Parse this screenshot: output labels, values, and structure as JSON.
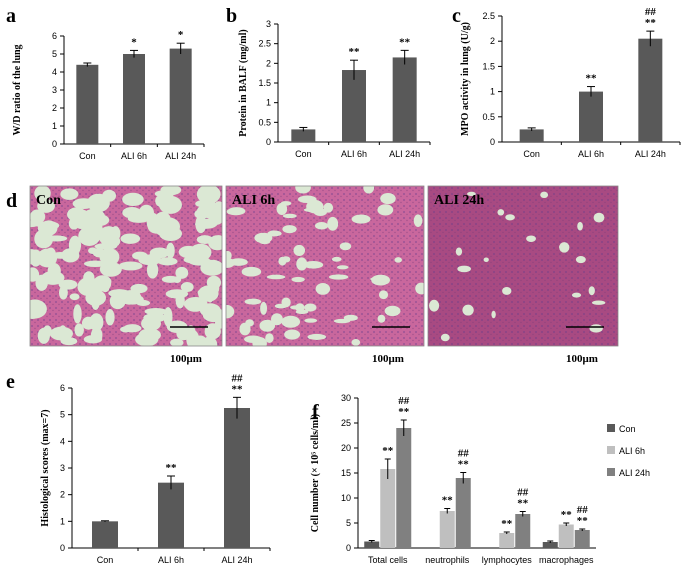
{
  "panels": {
    "a": {
      "letter": "a"
    },
    "b": {
      "letter": "b"
    },
    "c": {
      "letter": "c"
    },
    "d": {
      "letter": "d"
    },
    "e": {
      "letter": "e"
    },
    "f": {
      "letter": "f"
    }
  },
  "histology": {
    "images": [
      {
        "label": "Con",
        "scale": "100μm",
        "tissue": "normal"
      },
      {
        "label": "ALI 6h",
        "scale": "100μm",
        "tissue": "mild"
      },
      {
        "label": "ALI 24h",
        "scale": "100μm",
        "tissue": "severe"
      }
    ],
    "colors": {
      "background": "#dbe8d4",
      "tissue": "#c9679d",
      "tissue_dark": "#a84a82",
      "nuclei": "#5a3b8a"
    }
  },
  "chart_data": [
    {
      "id": "a",
      "type": "bar",
      "categories": [
        "Con",
        "ALI 6h",
        "ALI 24h"
      ],
      "values": [
        4.4,
        5.0,
        5.3
      ],
      "errors": [
        0.1,
        0.2,
        0.3
      ],
      "significance": [
        [
          "",
          ""
        ],
        [
          "*",
          ""
        ],
        [
          "*",
          ""
        ]
      ],
      "ylabel": "W/D ratio of the lung",
      "ylim": [
        0,
        6
      ],
      "yticks": [
        0,
        1,
        2,
        3,
        4,
        5,
        6
      ],
      "color": "#595959"
    },
    {
      "id": "b",
      "type": "bar",
      "categories": [
        "Con",
        "ALI 6h",
        "ALI 24h"
      ],
      "values": [
        0.32,
        1.83,
        2.15
      ],
      "errors": [
        0.05,
        0.25,
        0.18
      ],
      "significance": [
        [
          "",
          ""
        ],
        [
          "**",
          ""
        ],
        [
          "**",
          ""
        ]
      ],
      "ylabel": "Protein in BALF (mg/ml)",
      "ylim": [
        0,
        3
      ],
      "yticks": [
        0,
        0.5,
        1,
        1.5,
        2,
        2.5,
        3
      ],
      "yticklabels": [
        "0",
        "0.5",
        "1",
        "1.5",
        "2",
        "2.5",
        "3"
      ],
      "color": "#595959"
    },
    {
      "id": "c",
      "type": "bar",
      "categories": [
        "Con",
        "ALI 6h",
        "ALI 24h"
      ],
      "values": [
        0.25,
        1.0,
        2.05
      ],
      "errors": [
        0.03,
        0.1,
        0.15
      ],
      "significance": [
        [
          "",
          ""
        ],
        [
          "**",
          ""
        ],
        [
          "**",
          "##"
        ]
      ],
      "ylabel": "MPO activity in lung (U/g)",
      "ylim": [
        0,
        2.5
      ],
      "yticks": [
        0,
        0.5,
        1,
        1.5,
        2,
        2.5
      ],
      "yticklabels": [
        "0",
        "0.5",
        "1",
        "1.5",
        "2",
        "2.5"
      ],
      "color": "#595959"
    },
    {
      "id": "e",
      "type": "bar",
      "categories": [
        "Con",
        "ALI 6h",
        "ALI 24h"
      ],
      "values": [
        1.0,
        2.45,
        5.25
      ],
      "errors": [
        0.02,
        0.25,
        0.4
      ],
      "significance": [
        [
          "",
          ""
        ],
        [
          "**",
          ""
        ],
        [
          "**",
          "##"
        ]
      ],
      "ylabel": "Histological scores (max=7)",
      "ylim": [
        0,
        6
      ],
      "yticks": [
        0,
        1,
        2,
        3,
        4,
        5,
        6
      ],
      "color": "#595959"
    },
    {
      "id": "f",
      "type": "bar",
      "categories": [
        "Total cells",
        "neutrophils",
        "lymphocytes",
        "macrophages"
      ],
      "series": [
        {
          "name": "Con",
          "values": [
            1.3,
            0,
            0,
            1.2
          ],
          "errors": [
            0.2,
            0,
            0,
            0.2
          ],
          "color": "#595959",
          "sig": [
            "",
            "",
            "",
            ""
          ]
        },
        {
          "name": "ALI 6h",
          "values": [
            15.8,
            7.4,
            3.0,
            4.7
          ],
          "errors": [
            2.0,
            0.5,
            0.2,
            0.3
          ],
          "color": "#bfbfbf",
          "sig": [
            "**",
            "**",
            "**",
            "**"
          ]
        },
        {
          "name": "ALI 24h",
          "values": [
            24.0,
            14.0,
            6.8,
            3.6
          ],
          "errors": [
            1.6,
            1.1,
            0.5,
            0.2
          ],
          "color": "#808080",
          "sig": [
            "**",
            "**",
            "**",
            "**"
          ]
        }
      ],
      "hash": [
        "##",
        "##",
        "##",
        "##"
      ],
      "ylabel": "Cell number (× 10⁵ cells/ml)",
      "ylim": [
        0,
        30
      ],
      "yticks": [
        0,
        5,
        10,
        15,
        20,
        25,
        30
      ],
      "legend": "right"
    }
  ]
}
